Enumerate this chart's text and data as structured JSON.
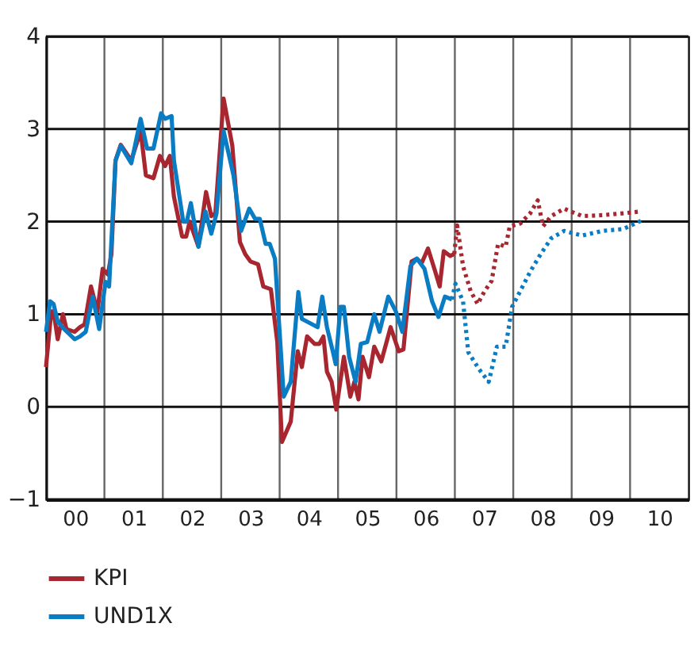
{
  "chart_data": {
    "type": "line",
    "xlim": [
      1999.5,
      2010.5
    ],
    "ylim": [
      -1,
      4
    ],
    "yticks": [
      -1,
      0,
      1,
      2,
      3,
      4
    ],
    "xticks": [
      {
        "value": 2000,
        "label": "00"
      },
      {
        "value": 2001,
        "label": "01"
      },
      {
        "value": 2002,
        "label": "02"
      },
      {
        "value": 2003,
        "label": "03"
      },
      {
        "value": 2004,
        "label": "04"
      },
      {
        "value": 2005,
        "label": "05"
      },
      {
        "value": 2006,
        "label": "06"
      },
      {
        "value": 2007,
        "label": "07"
      },
      {
        "value": 2008,
        "label": "08"
      },
      {
        "value": 2009,
        "label": "09"
      },
      {
        "value": 2010,
        "label": "10"
      },
      {
        "value": 2000.5,
        "label": null
      },
      {
        "value": 2001.5,
        "label": null
      },
      {
        "value": 2002.5,
        "label": null
      },
      {
        "value": 2003.5,
        "label": null
      },
      {
        "value": 2004.5,
        "label": null
      },
      {
        "value": 2005.5,
        "label": null
      },
      {
        "value": 2006.5,
        "label": null
      },
      {
        "value": 2007.5,
        "label": null
      },
      {
        "value": 2008.5,
        "label": null
      },
      {
        "value": 2009.5,
        "label": null
      }
    ],
    "grid": true,
    "legend": "bottom left",
    "series": [
      {
        "name": "KPI",
        "color": "#a8262f",
        "line_style": "solid",
        "x": [
          1999.5,
          1999.59,
          1999.63,
          1999.7,
          1999.79,
          1999.85,
          1999.99,
          2000.08,
          2000.16,
          2000.27,
          2000.38,
          2000.47,
          2000.56,
          2000.62,
          2000.69,
          2000.78,
          2000.96,
          2001.12,
          2001.21,
          2001.34,
          2001.45,
          2001.54,
          2001.62,
          2001.69,
          2001.83,
          2001.9,
          2001.96,
          2002.11,
          2002.24,
          2002.33,
          2002.4,
          2002.54,
          2002.69,
          2002.82,
          2002.91,
          2003.0,
          2003.13,
          2003.22,
          2003.35,
          2003.46,
          2003.54,
          2003.69,
          2003.81,
          2003.88,
          2003.97,
          2004.1,
          2004.18,
          2004.25,
          2004.31,
          2004.39,
          2004.47,
          2004.6,
          2004.71,
          2004.78,
          2004.85,
          2004.92,
          2005.03,
          2005.12,
          2005.24,
          2005.4,
          2005.54,
          2005.62,
          2005.76,
          2005.85,
          2005.93,
          2006.04,
          2006.15,
          2006.24,
          2006.31,
          2006.42,
          2006.49
        ],
        "values": [
          0.43,
          1.03,
          1.03,
          0.73,
          1.0,
          0.84,
          0.81,
          0.86,
          0.89,
          1.3,
          1.03,
          1.49,
          1.43,
          1.65,
          2.66,
          2.83,
          2.66,
          2.98,
          2.5,
          2.47,
          2.71,
          2.6,
          2.71,
          2.27,
          1.84,
          1.84,
          2.0,
          1.73,
          2.32,
          2.06,
          2.09,
          3.33,
          2.82,
          1.78,
          1.65,
          1.57,
          1.54,
          1.3,
          1.27,
          0.7,
          -0.38,
          -0.16,
          0.6,
          0.43,
          0.76,
          0.68,
          0.68,
          0.76,
          0.38,
          0.27,
          -0.03,
          0.54,
          0.11,
          0.27,
          0.08,
          0.54,
          0.32,
          0.65,
          0.49,
          0.86,
          0.6,
          0.62,
          1.57,
          1.6,
          1.55,
          1.71,
          1.49,
          1.3,
          1.68,
          1.63,
          1.65
        ]
      },
      {
        "name": "UND1X",
        "color": "#0a7cc4",
        "line_style": "solid",
        "x": [
          1999.5,
          1999.57,
          1999.63,
          1999.7,
          1999.81,
          1999.99,
          2000.08,
          2000.18,
          2000.3,
          2000.41,
          2000.52,
          2000.58,
          2000.69,
          2000.78,
          2000.96,
          2001.12,
          2001.23,
          2001.34,
          2001.47,
          2001.54,
          2001.65,
          2001.69,
          2001.85,
          2001.91,
          2001.98,
          2002.11,
          2002.23,
          2002.33,
          2002.42,
          2002.54,
          2002.71,
          2002.84,
          2002.98,
          2003.08,
          2003.16,
          2003.26,
          2003.33,
          2003.42,
          2003.57,
          2003.69,
          2003.82,
          2003.88,
          2004.06,
          2004.15,
          2004.23,
          2004.31,
          2004.41,
          2004.46,
          2004.54,
          2004.6,
          2004.69,
          2004.8,
          2004.89,
          2005.0,
          2005.12,
          2005.21,
          2005.36,
          2005.49,
          2005.6,
          2005.74,
          2005.85,
          2005.98,
          2006.11,
          2006.22,
          2006.33,
          2006.45
        ],
        "values": [
          0.81,
          1.14,
          1.11,
          0.92,
          0.84,
          0.73,
          0.76,
          0.81,
          1.19,
          0.84,
          1.35,
          1.3,
          2.66,
          2.82,
          2.63,
          3.11,
          2.79,
          2.79,
          3.17,
          3.11,
          3.14,
          2.66,
          2.0,
          2.0,
          2.2,
          1.73,
          2.11,
          1.87,
          2.09,
          2.98,
          2.5,
          1.9,
          2.14,
          2.03,
          2.03,
          1.76,
          1.76,
          1.6,
          0.11,
          0.27,
          1.24,
          0.95,
          0.89,
          0.86,
          1.19,
          0.86,
          0.6,
          0.46,
          1.08,
          1.08,
          0.54,
          0.27,
          0.68,
          0.7,
          1.0,
          0.81,
          1.19,
          1.03,
          0.81,
          1.52,
          1.6,
          1.49,
          1.14,
          0.97,
          1.19,
          1.16
        ]
      },
      {
        "color": "#a8262f",
        "line_style": "dotted",
        "x": [
          2006.49,
          2006.54,
          2006.64,
          2006.77,
          2006.89,
          2007.01,
          2007.13,
          2007.24,
          2007.37,
          2007.44,
          2007.62,
          2007.79,
          2007.92,
          2008.01,
          2008.15,
          2008.37,
          2008.68,
          2009.03,
          2009.38,
          2009.69
        ],
        "values": [
          1.65,
          1.96,
          1.52,
          1.25,
          1.11,
          1.25,
          1.36,
          1.76,
          1.73,
          1.95,
          1.98,
          2.09,
          2.23,
          1.95,
          2.06,
          2.14,
          2.06,
          2.07,
          2.09,
          2.11
        ]
      },
      {
        "color": "#0a7cc4",
        "line_style": "dotted",
        "x": [
          2006.45,
          2006.51,
          2006.64,
          2006.73,
          2006.91,
          2007.08,
          2007.22,
          2007.37,
          2007.48,
          2007.62,
          2007.79,
          2007.97,
          2008.15,
          2008.37,
          2008.68,
          2009.03,
          2009.38,
          2009.69
        ],
        "values": [
          1.16,
          1.33,
          1.14,
          0.59,
          0.41,
          0.27,
          0.65,
          0.65,
          1.08,
          1.25,
          1.46,
          1.65,
          1.82,
          1.9,
          1.85,
          1.9,
          1.92,
          2.01
        ]
      }
    ]
  }
}
